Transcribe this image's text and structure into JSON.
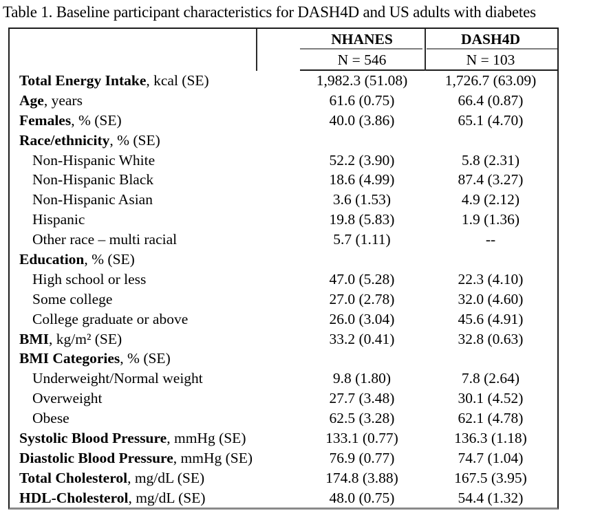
{
  "title": "Table 1. Baseline participant characteristics for DASH4D and US adults with diabetes",
  "table": {
    "columns": [
      {
        "name": "NHANES",
        "n_label": "N = 546"
      },
      {
        "name": "DASH4D",
        "n_label": "N = 103"
      }
    ],
    "rows": [
      {
        "bold": "Total Energy Intake",
        "rest": ", kcal (SE)",
        "indent": false,
        "v1": "1,982.3 (51.08)",
        "v2": "1,726.7 (63.09)"
      },
      {
        "bold": "Age",
        "rest": ", years",
        "indent": false,
        "v1": "61.6 (0.75)",
        "v2": "66.4 (0.87)"
      },
      {
        "bold": "Females",
        "rest": ", % (SE)",
        "indent": false,
        "v1": "40.0 (3.86)",
        "v2": "65.1 (4.70)"
      },
      {
        "bold": "Race/ethnicity",
        "rest": ", % (SE)",
        "indent": false,
        "v1": "",
        "v2": ""
      },
      {
        "bold": "",
        "rest": "Non-Hispanic White",
        "indent": true,
        "v1": "52.2 (3.90)",
        "v2": "5.8 (2.31)"
      },
      {
        "bold": "",
        "rest": "Non-Hispanic Black",
        "indent": true,
        "v1": "18.6 (4.99)",
        "v2": "87.4 (3.27)"
      },
      {
        "bold": "",
        "rest": "Non-Hispanic Asian",
        "indent": true,
        "v1": "3.6 (1.53)",
        "v2": "4.9 (2.12)"
      },
      {
        "bold": "",
        "rest": "Hispanic",
        "indent": true,
        "v1": "19.8 (5.83)",
        "v2": "1.9 (1.36)"
      },
      {
        "bold": "",
        "rest": "Other race – multi racial",
        "indent": true,
        "v1": "5.7 (1.11)",
        "v2": "--"
      },
      {
        "bold": "Education",
        "rest": ", % (SE)",
        "indent": false,
        "v1": "",
        "v2": ""
      },
      {
        "bold": "",
        "rest": "High school or less",
        "indent": true,
        "v1": "47.0 (5.28)",
        "v2": "22.3 (4.10)"
      },
      {
        "bold": "",
        "rest": "Some college",
        "indent": true,
        "v1": "27.0 (2.78)",
        "v2": "32.0 (4.60)"
      },
      {
        "bold": "",
        "rest": "College graduate or above",
        "indent": true,
        "v1": "26.0 (3.04)",
        "v2": "45.6 (4.91)"
      },
      {
        "bold": "BMI",
        "rest": ", kg/m² (SE)",
        "indent": false,
        "v1": "33.2 (0.41)",
        "v2": "32.8 (0.63)"
      },
      {
        "bold": "BMI Categories",
        "rest": ", % (SE)",
        "indent": false,
        "v1": "",
        "v2": ""
      },
      {
        "bold": "",
        "rest": "Underweight/Normal weight",
        "indent": true,
        "v1": "9.8 (1.80)",
        "v2": "7.8 (2.64)"
      },
      {
        "bold": "",
        "rest": "Overweight",
        "indent": true,
        "v1": "27.7 (3.48)",
        "v2": "30.1 (4.52)"
      },
      {
        "bold": "",
        "rest": "Obese",
        "indent": true,
        "v1": "62.5 (3.28)",
        "v2": "62.1 (4.78)"
      },
      {
        "bold": "Systolic Blood Pressure",
        "rest": ", mmHg (SE)",
        "indent": false,
        "v1": "133.1 (0.77)",
        "v2": "136.3 (1.18)"
      },
      {
        "bold": "Diastolic Blood Pressure",
        "rest": ", mmHg (SE)",
        "indent": false,
        "v1": "76.9 (0.77)",
        "v2": "74.7 (1.04)"
      },
      {
        "bold": "Total Cholesterol",
        "rest": ", mg/dL (SE)",
        "indent": false,
        "v1": "174.8 (3.88)",
        "v2": "167.5 (3.95)"
      },
      {
        "bold": "HDL-Cholesterol",
        "rest": ", mg/dL (SE)",
        "indent": false,
        "v1": "48.0 (0.75)",
        "v2": "54.4 (1.32)"
      }
    ]
  }
}
